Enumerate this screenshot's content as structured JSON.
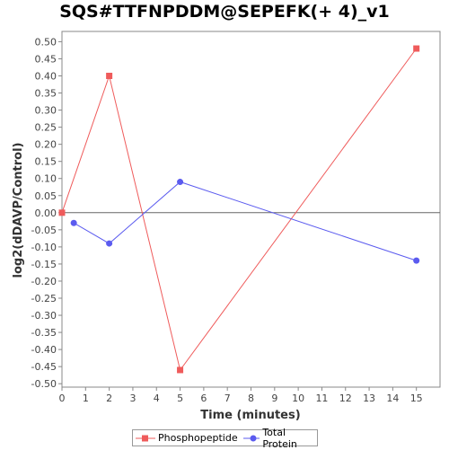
{
  "chart_data": {
    "type": "line",
    "title": "SQS#TTFNPDDM@SEPEFK(+ 4)_v1",
    "xlabel": "Time (minutes)",
    "ylabel": "log2(dDAVP/Control)",
    "xlim": [
      0,
      16
    ],
    "ylim": [
      -0.51,
      0.53
    ],
    "x_ticks": [
      0,
      1,
      2,
      3,
      4,
      5,
      6,
      7,
      8,
      9,
      10,
      11,
      12,
      13,
      14,
      15
    ],
    "y_ticks": [
      0.5,
      0.45,
      0.4,
      0.35,
      0.3,
      0.25,
      0.2,
      0.15,
      0.1,
      0.05,
      0.0,
      -0.05,
      -0.1,
      -0.15,
      -0.2,
      -0.25,
      -0.3,
      -0.35,
      -0.4,
      -0.45,
      -0.5
    ],
    "y_tick_labels": [
      "0.50",
      "0.45",
      "0.40",
      "0.35",
      "0.30",
      "0.25",
      "0.20",
      "0.15",
      "0.10",
      "0.05",
      "0.00",
      "-0.05",
      "-0.10",
      "-0.15",
      "-0.20",
      "-0.25",
      "-0.30",
      "-0.35",
      "-0.40",
      "-0.45",
      "-0.50"
    ],
    "zero_line": true,
    "grid": false,
    "legend_position": "bottom",
    "series": [
      {
        "name": "Phosphopeptide",
        "color": "#ef5b5b",
        "marker": "square",
        "x": [
          0,
          2,
          5,
          15
        ],
        "y": [
          0.0,
          0.4,
          -0.46,
          0.48
        ]
      },
      {
        "name": "Total Protein",
        "color": "#5b5bef",
        "marker": "circle",
        "x": [
          0.5,
          2,
          5,
          15
        ],
        "y": [
          -0.03,
          -0.09,
          0.09,
          -0.14
        ]
      }
    ]
  }
}
